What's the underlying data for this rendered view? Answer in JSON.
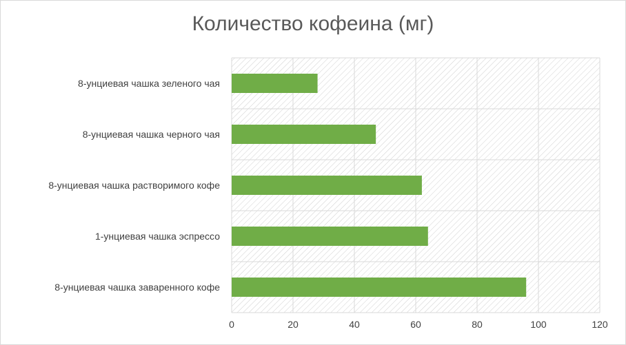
{
  "chart_data": {
    "type": "bar",
    "orientation": "horizontal",
    "title": "Количество кофеина (мг)",
    "categories": [
      "8-унциевая чашка заваренного кофе",
      "1-унциевая чашка эспрессо",
      "8-унциевая чашка растворимого кофе",
      "8-унциевая чашка черного чая",
      "8-унциевая чашка зеленого чая"
    ],
    "values": [
      96,
      64,
      62,
      47,
      28
    ],
    "xlim": [
      0,
      120
    ],
    "xticks": [
      "0",
      "20",
      "40",
      "60",
      "80",
      "100",
      "120"
    ],
    "bar_color": "#70ad47",
    "grid": true,
    "legend": "none"
  }
}
